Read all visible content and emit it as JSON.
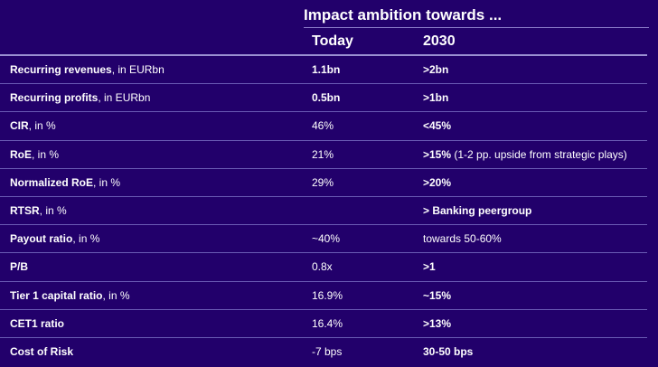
{
  "header": {
    "title": "Impact ambition towards ...",
    "col_today": "Today",
    "col_2030": "2030"
  },
  "rows": [
    {
      "name": "Recurring revenues",
      "unit": ", in EURbn",
      "today": "1.1bn",
      "target": ">2bn",
      "note": ""
    },
    {
      "name": "Recurring profits",
      "unit": ", in EURbn",
      "today": "0.5bn",
      "target": ">1bn",
      "note": ""
    },
    {
      "name": "CIR",
      "unit": ", in %",
      "today": "46%",
      "target": "<45%",
      "note": ""
    },
    {
      "name": "RoE",
      "unit": ", in %",
      "today": "21%",
      "target": ">15%",
      "note": " (1-2 pp. upside from strategic plays)"
    },
    {
      "name": "Normalized RoE",
      "unit": ", in %",
      "today": "29%",
      "target": ">20%",
      "note": ""
    },
    {
      "name": "RTSR",
      "unit": ", in %",
      "today": "",
      "target": "> Banking peergroup",
      "note": ""
    },
    {
      "name": "Payout ratio",
      "unit": ", in %",
      "today": "~40%",
      "target": "towards 50-60%",
      "note": ""
    },
    {
      "name": "P/B",
      "unit": "",
      "today": "0.8x",
      "target": ">1",
      "note": ""
    },
    {
      "name": "Tier 1 capital ratio",
      "unit": ", in %",
      "today": "16.9%",
      "target": "~15%",
      "note": ""
    },
    {
      "name": "CET1 ratio",
      "unit": "",
      "today": "16.4%",
      "target": ">13%",
      "note": ""
    },
    {
      "name": "Cost of Risk",
      "unit": "",
      "today": "-7 bps",
      "target": "30-50 bps",
      "note": ""
    }
  ]
}
